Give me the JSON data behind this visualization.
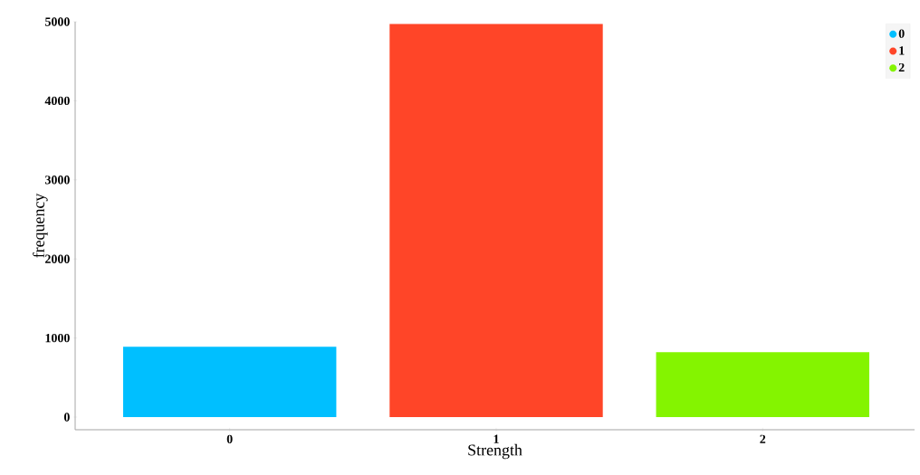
{
  "chart_data": {
    "type": "bar",
    "xlabel": "Strength",
    "ylabel": "frequency",
    "categories": [
      "0",
      "1",
      "2"
    ],
    "series": [
      {
        "name": "0",
        "color": "#00bfff",
        "values": [
          890,
          null,
          null
        ]
      },
      {
        "name": "1",
        "color": "#ff4528",
        "values": [
          null,
          4970,
          null
        ]
      },
      {
        "name": "2",
        "color": "#84f400",
        "values": [
          null,
          null,
          820
        ]
      }
    ],
    "ylim": [
      -160,
      5000
    ],
    "yticks": [
      0,
      1000,
      2000,
      3000,
      4000,
      5000
    ],
    "legend": "top right"
  }
}
